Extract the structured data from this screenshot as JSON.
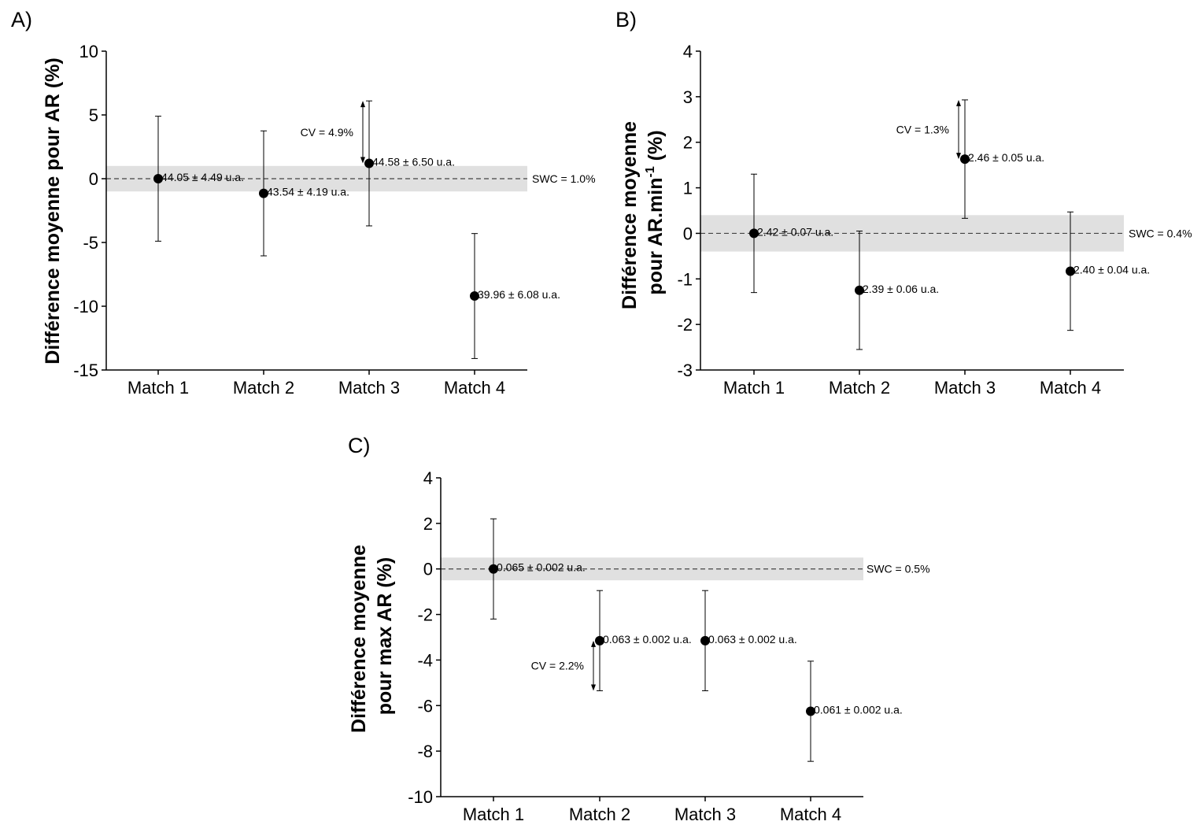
{
  "chart_data": [
    {
      "type": "scatter",
      "panel_label": "A)",
      "ylabel_lines": [
        "Différence moyenne pour AR (%)"
      ],
      "categories": [
        "Match 1",
        "Match 2",
        "Match 3",
        "Match 4"
      ],
      "yticks": [
        "10",
        "5",
        "0",
        "-5",
        "-10",
        "-15"
      ],
      "ylim": [
        -15,
        10
      ],
      "y": [
        0,
        -1.15,
        1.2,
        -9.2
      ],
      "err": [
        4.9,
        4.9,
        4.9,
        4.9
      ],
      "labels": [
        "44.05 ± 4.49 u.a.",
        "43.54 ± 4.19 u.a.",
        "44.58 ± 6.50 u.a.",
        "39.96 ± 6.08 u.a."
      ],
      "swc_value": 1.0,
      "swc_label": "SWC = 1.0%",
      "cv_label": "CV = 4.9%",
      "grid": false
    },
    {
      "type": "scatter",
      "panel_label": "B)",
      "ylabel_lines": [
        "Différence moyenne",
        "pour AR.min",
        "-1",
        " (%)"
      ],
      "categories": [
        "Match 1",
        "Match 2",
        "Match 3",
        "Match 4"
      ],
      "yticks": [
        "4",
        "3",
        "2",
        "1",
        "0",
        "-1",
        "-2",
        "-3"
      ],
      "ylim": [
        -3,
        4
      ],
      "y": [
        0,
        -1.25,
        1.63,
        -0.83
      ],
      "err": [
        1.3,
        1.3,
        1.3,
        1.3
      ],
      "labels": [
        "2.42 ± 0.07 u.a.",
        "2.39 ± 0.06 u.a.",
        "2.46 ± 0.05 u.a.",
        "2.40 ± 0.04 u.a."
      ],
      "swc_value": 0.4,
      "swc_label": "SWC = 0.4%",
      "cv_label": "CV = 1.3%",
      "grid": false
    },
    {
      "type": "scatter",
      "panel_label": "C)",
      "ylabel_lines": [
        "Différence moyenne",
        "pour max AR (%)"
      ],
      "categories": [
        "Match 1",
        "Match 2",
        "Match 3",
        "Match 4"
      ],
      "yticks": [
        "4",
        "2",
        "0",
        "-2",
        "-4",
        "-6",
        "-8",
        "-10"
      ],
      "ylim": [
        -10,
        4
      ],
      "y": [
        0,
        -3.15,
        -3.15,
        -6.25
      ],
      "err": [
        2.2,
        2.2,
        2.2,
        2.2
      ],
      "labels": [
        "0.065 ± 0.002 u.a.",
        "0.063 ± 0.002 u.a.",
        "0.063 ± 0.002 u.a.",
        "0.061 ± 0.002 u.a."
      ],
      "swc_value": 0.5,
      "swc_label": "SWC = 0.5%",
      "cv_label": "CV = 2.2%",
      "grid": false
    }
  ]
}
